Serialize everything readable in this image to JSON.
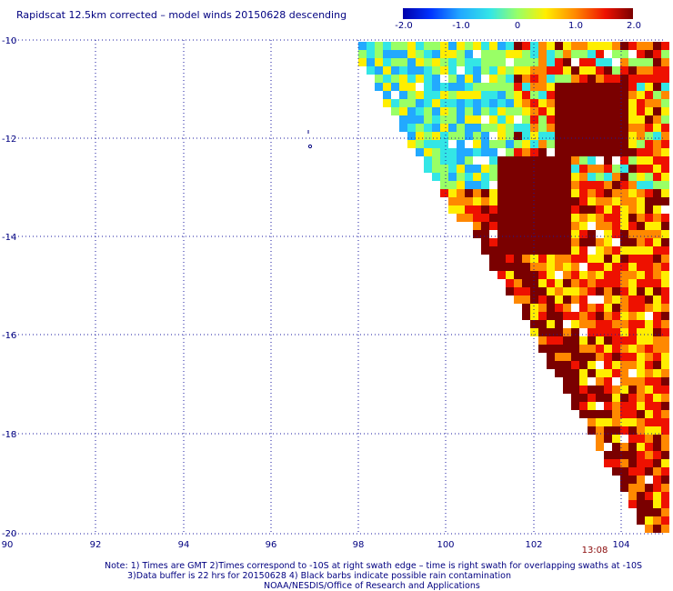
{
  "title": "Rapidscat 12.5km corrected – model winds 20150628 descending",
  "colorbar": {
    "ticks": [
      "-2.0",
      "-1.0",
      "0",
      "1.0",
      "2.0"
    ],
    "range": [
      -2.0,
      2.0
    ]
  },
  "axes": {
    "y_labels": [
      "-10",
      "-12",
      "-14",
      "-16",
      "-18",
      "-20"
    ],
    "x_labels": [
      "90",
      "92",
      "94",
      "96",
      "98",
      "100",
      "102",
      "104"
    ]
  },
  "time_stamp": "13:08",
  "notes": {
    "line1": "Note: 1) Times are GMT 2)Times correspond to -10S at right swath edge – time is right swath for overlapping swaths at -10S",
    "line2": "3)Data buffer is 22 hrs for 20150628 4) Black barbs indicate possible rain contamination",
    "line3": "NOAA/NESDIS/Office of Research and Applications"
  },
  "colors": {
    "label_navy": "#000080",
    "grid": "#1a1aa0",
    "stamp": "#8a0a0a"
  }
}
